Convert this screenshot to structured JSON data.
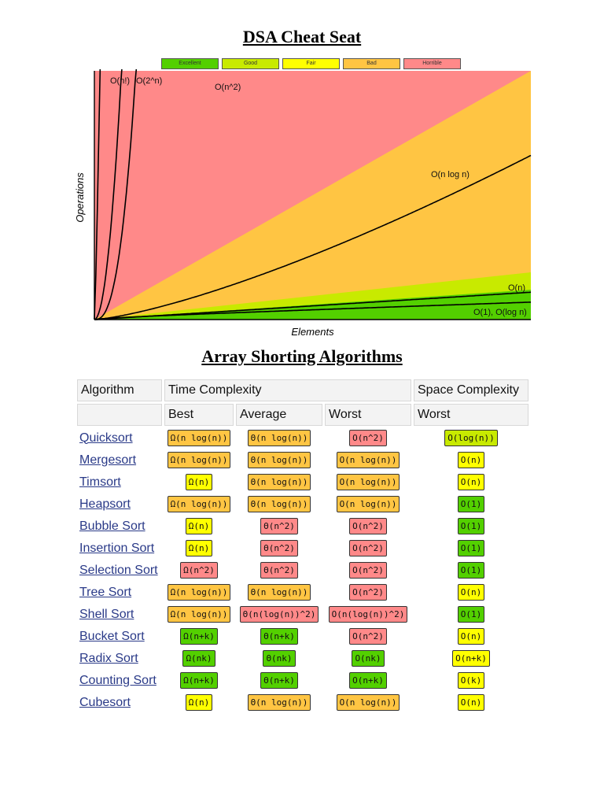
{
  "title": "DSA Cheat Seat",
  "subtitle": "Array Shorting Algorithms",
  "legend": [
    {
      "label": "Excellent",
      "color": "#53d000"
    },
    {
      "label": "Good",
      "color": "#c8ea00"
    },
    {
      "label": "Fair",
      "color": "#ffff00"
    },
    {
      "label": "Bad",
      "color": "#ffc543"
    },
    {
      "label": "Horrible",
      "color": "#ff8989"
    }
  ],
  "chart_data": {
    "type": "line",
    "xlabel": "Elements",
    "ylabel": "Operations",
    "grid": false,
    "legend_position": "top",
    "regions": [
      {
        "name": "Horrible",
        "color": "#ff8989"
      },
      {
        "name": "Bad",
        "color": "#ffc543"
      },
      {
        "name": "Fair",
        "color": "#ffff00"
      },
      {
        "name": "Good",
        "color": "#c8ea00"
      },
      {
        "name": "Excellent",
        "color": "#53d000"
      }
    ],
    "curves": [
      {
        "label": "O(n!)"
      },
      {
        "label": "O(2^n)"
      },
      {
        "label": "O(n^2)"
      },
      {
        "label": "O(n log n)"
      },
      {
        "label": "O(n)"
      },
      {
        "label": "O(1), O(log n)"
      }
    ]
  },
  "table": {
    "headers_row1": [
      "Algorithm",
      "Time Complexity",
      "Space Complexity"
    ],
    "headers_row2": [
      "",
      "Best",
      "Average",
      "Worst",
      "Worst"
    ],
    "rows": [
      {
        "name": "Quicksort",
        "best": "Ω(n log(n))",
        "best_c": "bad",
        "avg": "Θ(n log(n))",
        "avg_c": "bad",
        "worst": "O(n^2)",
        "worst_c": "horrible",
        "space": "O(log(n))",
        "space_c": "good"
      },
      {
        "name": "Mergesort",
        "best": "Ω(n log(n))",
        "best_c": "bad",
        "avg": "Θ(n log(n))",
        "avg_c": "bad",
        "worst": "O(n log(n))",
        "worst_c": "bad",
        "space": "O(n)",
        "space_c": "fair"
      },
      {
        "name": "Timsort",
        "best": "Ω(n)",
        "best_c": "fair",
        "avg": "Θ(n log(n))",
        "avg_c": "bad",
        "worst": "O(n log(n))",
        "worst_c": "bad",
        "space": "O(n)",
        "space_c": "fair"
      },
      {
        "name": "Heapsort",
        "best": "Ω(n log(n))",
        "best_c": "bad",
        "avg": "Θ(n log(n))",
        "avg_c": "bad",
        "worst": "O(n log(n))",
        "worst_c": "bad",
        "space": "O(1)",
        "space_c": "excellent"
      },
      {
        "name": "Bubble Sort",
        "best": "Ω(n)",
        "best_c": "fair",
        "avg": "Θ(n^2)",
        "avg_c": "horrible",
        "worst": "O(n^2)",
        "worst_c": "horrible",
        "space": "O(1)",
        "space_c": "excellent"
      },
      {
        "name": "Insertion Sort",
        "best": "Ω(n)",
        "best_c": "fair",
        "avg": "Θ(n^2)",
        "avg_c": "horrible",
        "worst": "O(n^2)",
        "worst_c": "horrible",
        "space": "O(1)",
        "space_c": "excellent"
      },
      {
        "name": "Selection Sort",
        "best": "Ω(n^2)",
        "best_c": "horrible",
        "avg": "Θ(n^2)",
        "avg_c": "horrible",
        "worst": "O(n^2)",
        "worst_c": "horrible",
        "space": "O(1)",
        "space_c": "excellent"
      },
      {
        "name": "Tree Sort",
        "best": "Ω(n log(n))",
        "best_c": "bad",
        "avg": "Θ(n log(n))",
        "avg_c": "bad",
        "worst": "O(n^2)",
        "worst_c": "horrible",
        "space": "O(n)",
        "space_c": "fair"
      },
      {
        "name": "Shell Sort",
        "best": "Ω(n log(n))",
        "best_c": "bad",
        "avg": "Θ(n(log(n))^2)",
        "avg_c": "horrible",
        "worst": "O(n(log(n))^2)",
        "worst_c": "horrible",
        "space": "O(1)",
        "space_c": "excellent"
      },
      {
        "name": "Bucket Sort",
        "best": "Ω(n+k)",
        "best_c": "excellent",
        "avg": "Θ(n+k)",
        "avg_c": "excellent",
        "worst": "O(n^2)",
        "worst_c": "horrible",
        "space": "O(n)",
        "space_c": "fair"
      },
      {
        "name": "Radix Sort",
        "best": "Ω(nk)",
        "best_c": "excellent",
        "avg": "Θ(nk)",
        "avg_c": "excellent",
        "worst": "O(nk)",
        "worst_c": "excellent",
        "space": "O(n+k)",
        "space_c": "fair"
      },
      {
        "name": "Counting Sort",
        "best": "Ω(n+k)",
        "best_c": "excellent",
        "avg": "Θ(n+k)",
        "avg_c": "excellent",
        "worst": "O(n+k)",
        "worst_c": "excellent",
        "space": "O(k)",
        "space_c": "fair"
      },
      {
        "name": "Cubesort",
        "best": "Ω(n)",
        "best_c": "fair",
        "avg": "Θ(n log(n))",
        "avg_c": "bad",
        "worst": "O(n log(n))",
        "worst_c": "bad",
        "space": "O(n)",
        "space_c": "fair"
      }
    ]
  }
}
